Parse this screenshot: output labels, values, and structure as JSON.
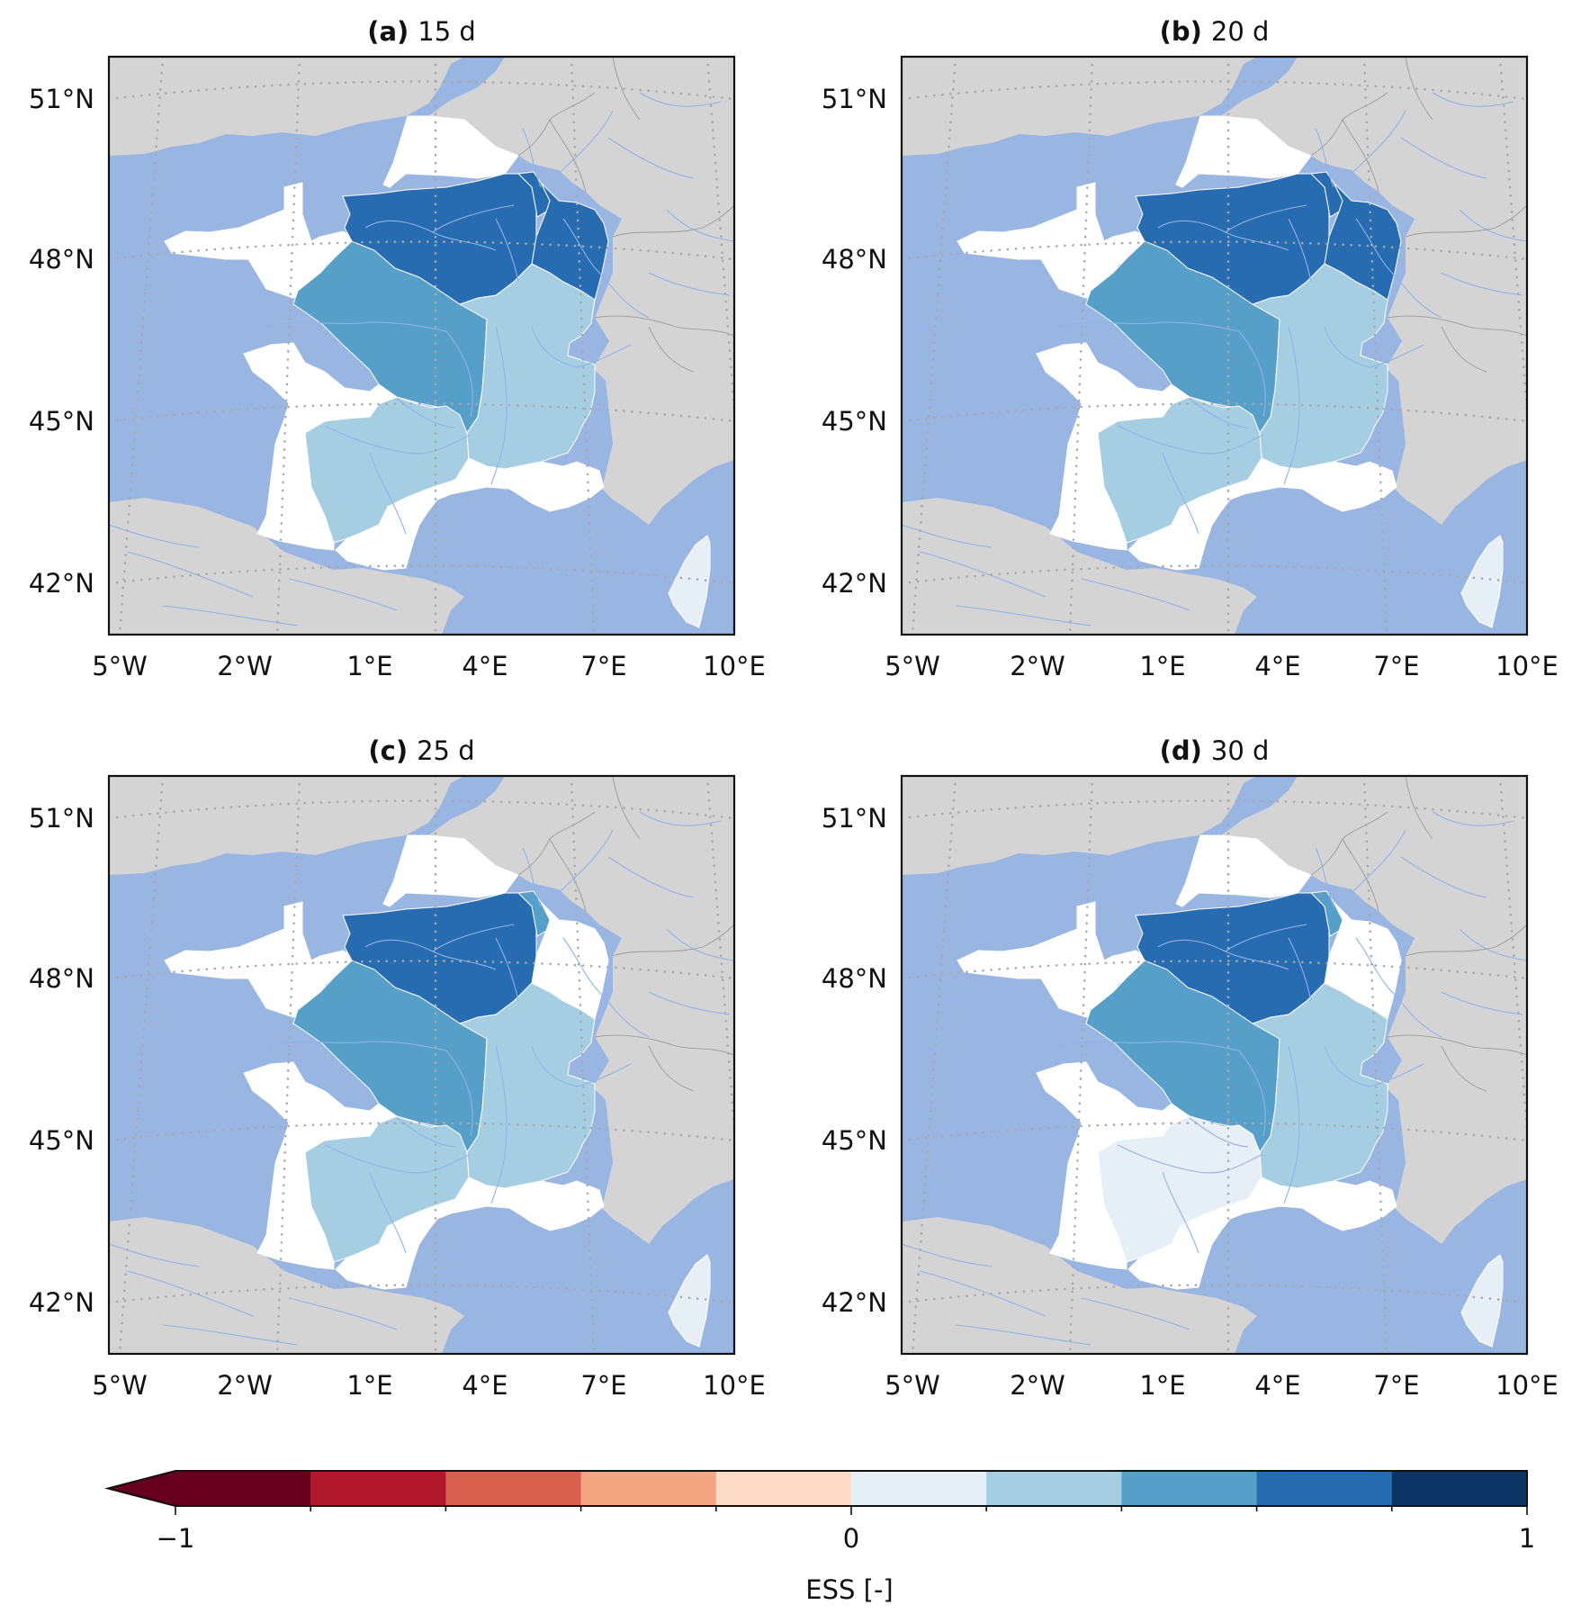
{
  "panels": [
    {
      "id": "a",
      "letter": "(a)",
      "lead": "15 d",
      "basins": {
        "brittany": 0.0,
        "seine": 0.7,
        "rhine": 0.7,
        "meuse": 0.7,
        "loire": 0.5,
        "rhone": 0.3,
        "garonne": 0.3,
        "adour": 0.0,
        "med": 0.0,
        "corsica": 0.1
      }
    },
    {
      "id": "b",
      "letter": "(b)",
      "lead": "20 d",
      "basins": {
        "brittany": 0.0,
        "seine": 0.7,
        "rhine": 0.7,
        "meuse": 0.7,
        "loire": 0.5,
        "rhone": 0.3,
        "garonne": 0.3,
        "adour": 0.0,
        "med": 0.0,
        "corsica": 0.1
      }
    },
    {
      "id": "c",
      "letter": "(c)",
      "lead": "25 d",
      "basins": {
        "brittany": 0.0,
        "seine": 0.7,
        "rhine": 0.0,
        "meuse": 0.5,
        "loire": 0.5,
        "rhone": 0.3,
        "garonne": 0.3,
        "adour": 0.0,
        "med": 0.0,
        "corsica": 0.1
      }
    },
    {
      "id": "d",
      "letter": "(d)",
      "lead": "30 d",
      "basins": {
        "brittany": 0.0,
        "seine": 0.7,
        "rhine": 0.0,
        "meuse": 0.5,
        "loire": 0.5,
        "rhone": 0.3,
        "garonne": 0.1,
        "adour": 0.0,
        "med": 0.0,
        "corsica": 0.1
      }
    }
  ],
  "axes": {
    "lon_ticks": [
      "5°W",
      "2°W",
      "1°E",
      "4°E",
      "7°E",
      "10°E"
    ],
    "lat_ticks": [
      "51°N",
      "48°N",
      "45°N",
      "42°N"
    ]
  },
  "colorbar": {
    "label": "ESS [-]",
    "range": [
      -1,
      1
    ],
    "extend": "min",
    "boundaries": [
      -1,
      -0.8,
      -0.6,
      -0.4,
      -0.2,
      0,
      0.2,
      0.4,
      0.6,
      0.8,
      1
    ],
    "colors": [
      "#67001f",
      "#b2182b",
      "#d6604d",
      "#f4a582",
      "#fddbc7",
      "#e6eef6",
      "#a6cee3",
      "#559fc9",
      "#276bb0",
      "#0b3364"
    ],
    "extend_color": "#67001f",
    "tick_labels": [
      "−1",
      "0",
      "1"
    ]
  },
  "colors": {
    "sea": "#99b6e2",
    "land": "#d4d4d4",
    "border": "#9a9a9a",
    "river": "#8fb3e6",
    "grid": "#a8a8a8"
  }
}
